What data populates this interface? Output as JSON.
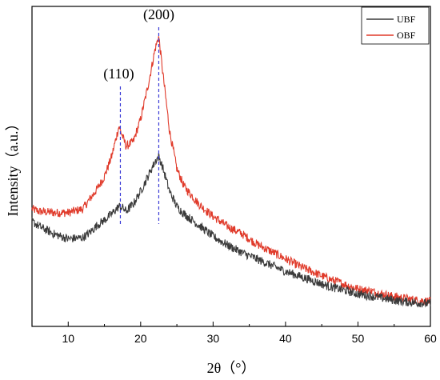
{
  "chart_data": {
    "type": "line",
    "xlabel": "2θ（°）",
    "ylabel": "Intensity（a.u.）",
    "xlim": [
      5,
      60
    ],
    "xticks": [
      10,
      20,
      30,
      40,
      50,
      60
    ],
    "grid": false,
    "legend_position": "top-right",
    "series": [
      {
        "name": "UBF",
        "color": "#3a3a3a",
        "x": [
          5,
          6,
          8,
          10,
          12,
          13,
          14,
          15,
          16,
          17,
          17.5,
          18,
          19,
          20,
          21,
          22,
          22.5,
          23,
          24,
          25,
          26,
          28,
          30,
          32,
          34,
          36,
          38,
          40,
          42,
          44,
          46,
          48,
          50,
          52,
          54,
          56,
          58,
          60
        ],
        "y": [
          0.54,
          0.52,
          0.49,
          0.47,
          0.475,
          0.495,
          0.525,
          0.545,
          0.57,
          0.6,
          0.595,
          0.58,
          0.61,
          0.66,
          0.72,
          0.78,
          0.8,
          0.76,
          0.66,
          0.6,
          0.57,
          0.525,
          0.48,
          0.445,
          0.415,
          0.39,
          0.365,
          0.34,
          0.32,
          0.3,
          0.28,
          0.265,
          0.25,
          0.24,
          0.23,
          0.22,
          0.215,
          0.21
        ]
      },
      {
        "name": "OBF",
        "color": "#e03a2a",
        "x": [
          5,
          6,
          8,
          10,
          12,
          13,
          14,
          15,
          16,
          17,
          17.5,
          18,
          19,
          20,
          21,
          22,
          22.5,
          23,
          24,
          25,
          26,
          28,
          30,
          32,
          34,
          36,
          38,
          40,
          42,
          44,
          46,
          48,
          50,
          52,
          54,
          56,
          58,
          60
        ],
        "y": [
          0.59,
          0.58,
          0.575,
          0.575,
          0.59,
          0.63,
          0.67,
          0.72,
          0.8,
          0.92,
          0.88,
          0.84,
          0.86,
          0.95,
          1.08,
          1.23,
          1.28,
          1.15,
          0.9,
          0.75,
          0.68,
          0.61,
          0.56,
          0.52,
          0.49,
          0.45,
          0.42,
          0.39,
          0.36,
          0.335,
          0.31,
          0.29,
          0.27,
          0.26,
          0.245,
          0.235,
          0.225,
          0.22
        ]
      }
    ],
    "annotations": [
      {
        "label": "(110)",
        "x": 17.2
      },
      {
        "label": "(200)",
        "x": 22.5
      }
    ]
  }
}
